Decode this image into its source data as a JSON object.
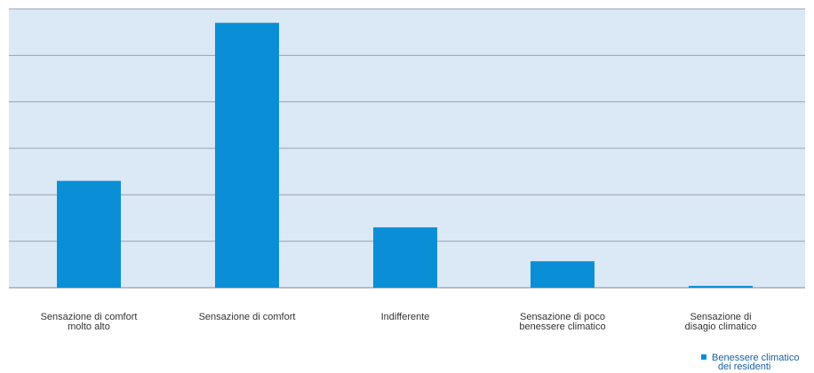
{
  "chart_data": {
    "type": "bar",
    "categories": [
      [
        "Sensazione di comfort",
        "molto alto"
      ],
      [
        "Sensazione di comfort"
      ],
      [
        "Indifferente"
      ],
      [
        "Sensazione di poco",
        "benessere climatico"
      ],
      [
        "Sensazione di",
        "disagio climatico"
      ]
    ],
    "series": [
      {
        "name": "Benessere climatico dei residenti",
        "values": [
          23,
          57,
          13,
          5.7,
          0.4
        ]
      }
    ],
    "legend": {
      "position": "bottom-right",
      "lines": [
        "Benessere climatico",
        "dei residenti"
      ]
    },
    "ylim": [
      0,
      60
    ],
    "grid": true,
    "colors": {
      "plot_background": "#dbe8f6",
      "bar": "#0a8fd6",
      "grid": "#9aa3ad"
    }
  }
}
